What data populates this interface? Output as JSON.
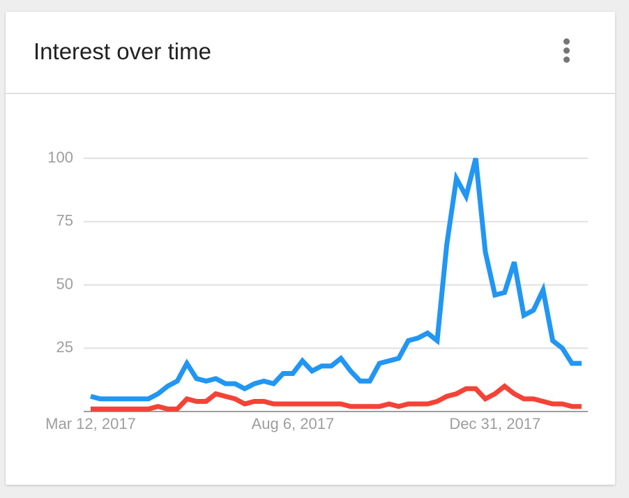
{
  "chart_data": {
    "type": "line",
    "title": "Interest over time",
    "categories": [
      "Mar 12, 2017",
      null,
      null,
      null,
      null,
      null,
      null,
      null,
      null,
      null,
      null,
      null,
      null,
      null,
      null,
      null,
      null,
      null,
      null,
      null,
      null,
      "Aug 6, 2017",
      null,
      null,
      null,
      null,
      null,
      null,
      null,
      null,
      null,
      null,
      null,
      null,
      null,
      null,
      null,
      null,
      null,
      null,
      null,
      null,
      "Dec 31, 2017",
      null,
      null,
      null,
      null,
      null,
      null,
      null,
      null,
      null
    ],
    "series": [
      {
        "color": "#2196f3",
        "values": [
          6,
          5,
          5,
          5,
          5,
          5,
          5,
          7,
          10,
          12,
          19,
          13,
          12,
          13,
          11,
          11,
          9,
          11,
          12,
          11,
          15,
          15,
          20,
          16,
          18,
          18,
          21,
          16,
          12,
          12,
          19,
          20,
          21,
          28,
          29,
          31,
          28,
          66,
          92,
          85,
          100,
          63,
          46,
          47,
          59,
          38,
          40,
          48,
          28,
          25,
          19,
          19
        ]
      },
      {
        "color": "#f44336",
        "values": [
          1,
          1,
          1,
          1,
          1,
          1,
          1,
          2,
          1,
          1,
          5,
          4,
          4,
          7,
          6,
          5,
          3,
          4,
          4,
          3,
          3,
          3,
          3,
          3,
          3,
          3,
          3,
          2,
          2,
          2,
          2,
          3,
          2,
          3,
          3,
          3,
          4,
          6,
          7,
          9,
          9,
          5,
          7,
          10,
          7,
          5,
          5,
          4,
          3,
          3,
          2,
          2
        ]
      }
    ],
    "ylim": [
      0,
      100
    ],
    "yticks": [
      25,
      50,
      75,
      100
    ],
    "grid": true
  }
}
